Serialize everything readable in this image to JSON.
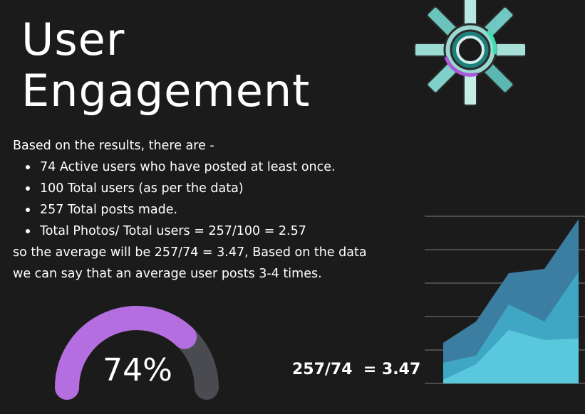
{
  "slide": {
    "title_line1": "User",
    "title_line2": "Engagement",
    "intro": "Based on the results, there are -",
    "bullets": [
      "74 Active users who have posted at least once.",
      "100 Total users (as per the data)",
      "257 Total posts made.",
      "Total Photos/ Total users = 257/100 = 2.57"
    ],
    "conclusion_line1": "so the average will be 257/74 = 3.47, Based on the data",
    "conclusion_line2": "we can say that an average user posts 3-4 times."
  },
  "gauge": {
    "label": "74%",
    "value": 0.74,
    "fill_color": "#b46ee0",
    "track_color": "#4a4b50"
  },
  "ratio": {
    "text": "257/74  = 3.47"
  },
  "decor": {
    "gear_icon": "gear-icon",
    "area_chart": {
      "colors": [
        "#3b7ea1",
        "#3fa7c4",
        "#5ac8dc"
      ]
    }
  }
}
